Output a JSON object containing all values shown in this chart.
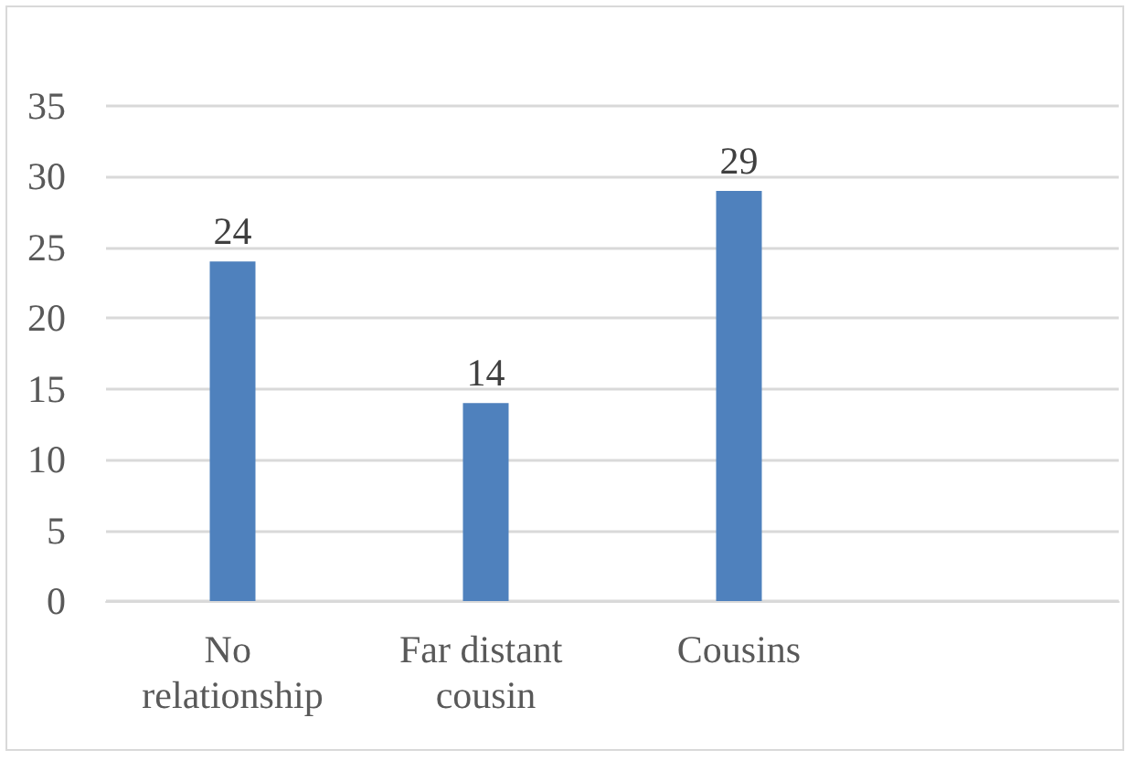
{
  "chart_data": {
    "type": "bar",
    "categories": [
      "No relationship",
      "Far distant cousin",
      "Cousins",
      null
    ],
    "values": [
      24,
      14,
      29,
      null
    ],
    "color": "#4f81bd",
    "ylim": [
      0,
      35
    ],
    "yticks": [
      0,
      5,
      10,
      15,
      20,
      25,
      30,
      35
    ],
    "grid": "y",
    "data_labels": true
  }
}
